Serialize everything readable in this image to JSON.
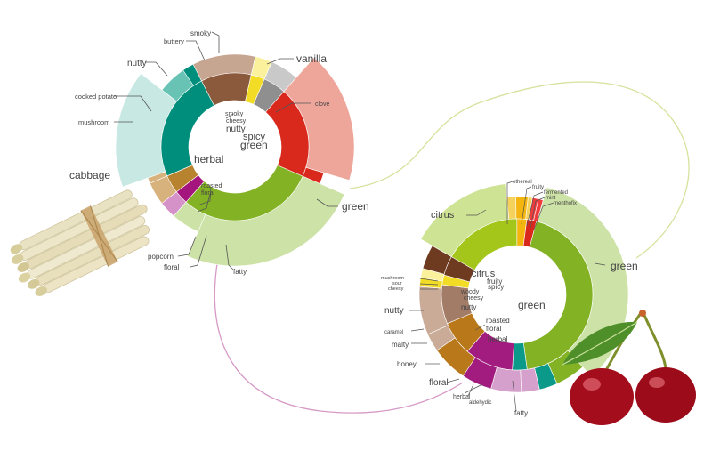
{
  "colors": {
    "herbal": "#008e7c",
    "green": "#83b324",
    "green_light": "#cde2a6",
    "spicy": "#d9281c",
    "vanilla": "#eea69a",
    "nutty": "#8b5a3c",
    "nutty_light": "#c6a591",
    "smoky": "#8f8f8f",
    "smoky_light": "#c9c9c9",
    "cheesy": "#f3dc26",
    "cheesy_light": "#fbf19c",
    "mushroom": "#69c3b5",
    "cabbage": "#c7e8e3",
    "roasted": "#b7832e",
    "popcorn": "#d8b27c",
    "floral": "#a5157e",
    "floral_light": "#d592c8",
    "citrus": "#a4c61a",
    "citrus_light": "#cfe394",
    "fruity": "#f5b50f",
    "fermented": "#f4d25c",
    "mint": "#f03c3c",
    "brown": "#6e3b21",
    "caramel": "#a27c67",
    "caramel_light": "#c9ab97",
    "malty": "#b9781a",
    "honey": "#a11c7e",
    "honey_light": "#d5a0cb",
    "teal": "#0b9a8a",
    "connector_green": "#d5e29c",
    "connector_pink": "#d79ac6",
    "leader": "#555555"
  },
  "asparagus": {
    "inner": [
      {
        "label": "nutty",
        "value": 0.11,
        "color": "nutty"
      },
      {
        "label": "cheesy",
        "value": 0.03,
        "color": "cheesy"
      },
      {
        "label": "smoky",
        "value": 0.05,
        "color": "smoky"
      },
      {
        "label": "spicy",
        "value": 0.2,
        "color": "spicy"
      },
      {
        "label": "green",
        "value": 0.3,
        "color": "green"
      },
      {
        "label": "floral",
        "value": 0.03,
        "color": "floral"
      },
      {
        "label": "roasted",
        "value": 0.04,
        "color": "roasted"
      },
      {
        "label": "herbal",
        "value": 0.24,
        "color": "herbal"
      }
    ],
    "outer": [
      {
        "label": "nutty",
        "value": 0.11,
        "color": "nutty_light",
        "ext": 0
      },
      {
        "label": "buttery",
        "value": 0.03,
        "color": "cheesy_light",
        "ext": 0
      },
      {
        "label": "smoky",
        "value": 0.05,
        "color": "smoky_light",
        "ext": 0
      },
      {
        "label": "vanilla",
        "value": 0.18,
        "color": "vanilla",
        "ext": 1
      },
      {
        "label": "clove",
        "value": 0.02,
        "color": "spicy",
        "ext": 0
      },
      {
        "label": "green",
        "value": 0.25,
        "color": "green_light",
        "ext": 1
      },
      {
        "label": "fatty",
        "value": 0.05,
        "color": "green_light",
        "ext": 0
      },
      {
        "label": "floral",
        "value": 0.03,
        "color": "floral_light",
        "ext": 0
      },
      {
        "label": "popcorn",
        "value": 0.04,
        "color": "popcorn",
        "ext": 0
      },
      {
        "label": "roasted",
        "value": 0.01,
        "color": "popcorn",
        "ext": 0
      },
      {
        "label": "cabbage",
        "value": 0.16,
        "color": "cabbage",
        "ext": 1
      },
      {
        "label": "mushroom",
        "value": 0.05,
        "color": "mushroom",
        "ext": 0
      },
      {
        "label": "cooked potato",
        "value": 0.02,
        "color": "herbal",
        "ext": 0
      }
    ],
    "labels": {
      "smoky": "smoky",
      "buttery": "buttery",
      "nutty": "nutty",
      "vanilla": "vanilla",
      "cooked_potato": "cooked potato",
      "clove": "clove",
      "mushroom": "mushroom",
      "smoky_inner": "smoky",
      "cheesy_inner": "cheesy",
      "nutty_inner": "nutty",
      "spicy_inner": "spicy",
      "green_inner": "green",
      "herbal": "herbal",
      "cabbage": "cabbage",
      "roasted_inner": "roasted",
      "floral_inner": "floral",
      "green": "green",
      "popcorn": "popcorn",
      "floral": "floral",
      "fatty": "fatty"
    }
  },
  "cherry": {
    "inner": [
      {
        "label": "citrus",
        "value": 0.16,
        "color": "citrus"
      },
      {
        "label": "fruity",
        "value": 0.02,
        "color": "fruity"
      },
      {
        "label": "spicy",
        "value": 0.02,
        "color": "spicy"
      },
      {
        "label": "green",
        "value": 0.42,
        "color": "green"
      },
      {
        "label": "herbal",
        "value": 0.03,
        "color": "teal"
      },
      {
        "label": "floral",
        "value": 0.1,
        "color": "honey"
      },
      {
        "label": "roasted",
        "value": 0.07,
        "color": "malty"
      },
      {
        "label": "nutty",
        "value": 0.08,
        "color": "caramel"
      },
      {
        "label": "cheesy",
        "value": 0.02,
        "color": "cheesy"
      },
      {
        "label": "woody",
        "value": 0.04,
        "color": "brown"
      }
    ],
    "outer": [
      {
        "label": "citrus",
        "value": 0.15,
        "color": "citrus_light",
        "ext": 1
      },
      {
        "label": "ethereal",
        "value": 0.015,
        "color": "fermented",
        "ext": 0
      },
      {
        "label": "fruity",
        "value": 0.02,
        "color": "fruity",
        "ext": 0
      },
      {
        "label": "fermented",
        "value": 0.007,
        "color": "fermented",
        "ext": 0
      },
      {
        "label": "mint",
        "value": 0.01,
        "color": "mint",
        "ext": 0
      },
      {
        "label": "menthofix",
        "value": 0.008,
        "color": "mint",
        "ext": 0
      },
      {
        "label": "green",
        "value": 0.34,
        "color": "green_light",
        "ext": 1
      },
      {
        "label": "fatty",
        "value": 0.05,
        "color": "green",
        "ext": 0
      },
      {
        "label": "aldehydic",
        "value": 0.03,
        "color": "teal",
        "ext": 0
      },
      {
        "label": "herbal",
        "value": 0.03,
        "color": "honey_light",
        "ext": 0
      },
      {
        "label": "floral",
        "value": 0.05,
        "color": "honey_light",
        "ext": 0
      },
      {
        "label": "honey",
        "value": 0.05,
        "color": "honey",
        "ext": 0
      },
      {
        "label": "malty",
        "value": 0.06,
        "color": "malty",
        "ext": 0
      },
      {
        "label": "caramel",
        "value": 0.03,
        "color": "caramel_light",
        "ext": 0
      },
      {
        "label": "nutty",
        "value": 0.08,
        "color": "caramel_light",
        "ext": 0
      },
      {
        "label": "cheesy",
        "value": 0.015,
        "color": "cheesy",
        "ext": 0
      },
      {
        "label": "sour",
        "value": 0.015,
        "color": "cheesy_light",
        "ext": 0
      },
      {
        "label": "mushroom",
        "value": 0.04,
        "color": "brown",
        "ext": 0
      }
    ],
    "labels": {
      "ethereal": "ethereal",
      "fruity": "fruity",
      "fermented": "fermented",
      "mint": "mint",
      "menthofix": "menthofix",
      "citrus": "citrus",
      "green": "green",
      "citrus_inner": "citrus",
      "fruity_inner": "fruity",
      "spicy_inner": "spicy",
      "green_inner": "green",
      "mushroom": "mushroom",
      "sour": "sour",
      "cheesy": "cheesy",
      "woody_inner": "woody",
      "cheesy_inner": "cheesy",
      "nutty": "nutty",
      "nutty_inner": "nutty",
      "roasted_inner": "roasted",
      "floral_inner": "floral",
      "caramel": "caramel",
      "malty": "malty",
      "herbal_inner": "herbal",
      "honey": "honey",
      "floral": "floral",
      "herbal": "herbal",
      "aldehydic": "aldehydic",
      "fatty": "fatty"
    }
  }
}
